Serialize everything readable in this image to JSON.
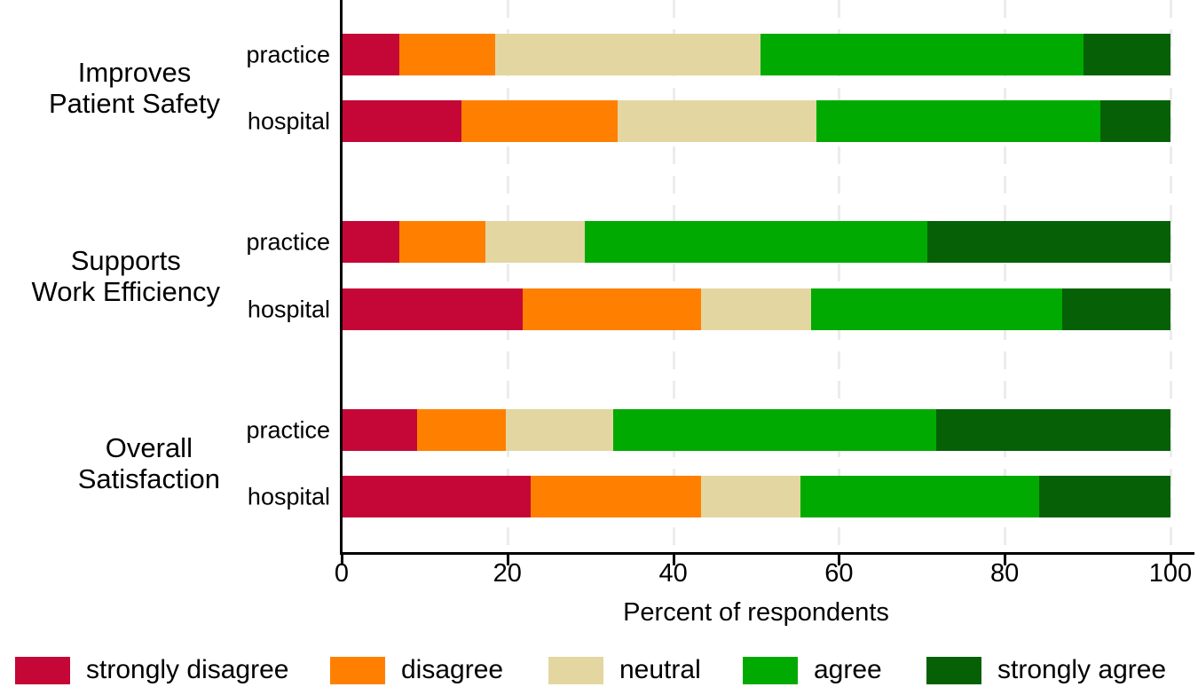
{
  "chart_data": {
    "type": "bar",
    "variant": "horizontal-stacked-percent",
    "title": "",
    "xlabel": "Percent of respondents",
    "xlim": [
      0,
      100
    ],
    "xticks": [
      0,
      20,
      40,
      60,
      80,
      100
    ],
    "grid": "vertical-dashed",
    "legend_position": "bottom",
    "categories": [
      "strongly disagree",
      "disagree",
      "neutral",
      "agree",
      "strongly agree"
    ],
    "colors": {
      "strongly disagree": "#c40736",
      "disagree": "#ff8000",
      "neutral": "#e4d6a0",
      "agree": "#00aa00",
      "strongly agree": "#066106"
    },
    "grid_color": "#ececec",
    "axis_color": "#000000",
    "groups": [
      {
        "label_lines": [
          "Improves",
          "Patient Safety"
        ],
        "bars": [
          {
            "label": "practice",
            "values": [
              7.0,
              11.5,
              32.0,
              39.0,
              10.5
            ]
          },
          {
            "label": "hospital",
            "values": [
              14.5,
              18.8,
              24.0,
              34.2,
              8.5
            ]
          }
        ]
      },
      {
        "label_lines": [
          "Supports",
          "Work Efficiency"
        ],
        "bars": [
          {
            "label": "practice",
            "values": [
              7.0,
              10.3,
              12.0,
              41.4,
              29.3
            ]
          },
          {
            "label": "hospital",
            "values": [
              21.8,
              21.6,
              13.2,
              30.3,
              13.1
            ]
          }
        ]
      },
      {
        "label_lines": [
          "Overall",
          "Satisfaction"
        ],
        "bars": [
          {
            "label": "practice",
            "values": [
              9.1,
              10.7,
              13.0,
              38.9,
              28.3
            ]
          },
          {
            "label": "hospital",
            "values": [
              22.8,
              20.6,
              12.0,
              28.8,
              15.8
            ]
          }
        ]
      }
    ]
  }
}
